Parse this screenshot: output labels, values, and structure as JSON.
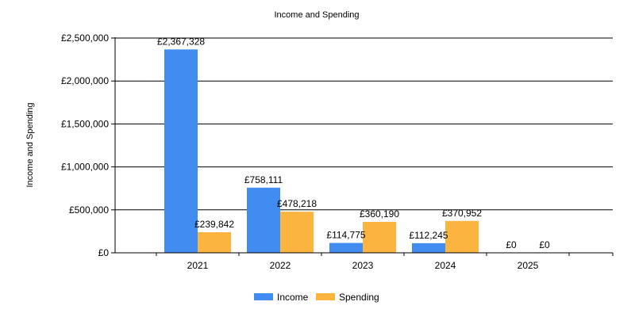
{
  "chart_data": {
    "type": "bar",
    "title": "Income and Spending",
    "ylabel": "Income and Spending",
    "xlabel": "",
    "categories": [
      "2021",
      "2022",
      "2023",
      "2024",
      "2025"
    ],
    "series": [
      {
        "name": "Income",
        "color": "#418CF0",
        "values": [
          2367328,
          758111,
          114775,
          112245,
          0
        ],
        "labels": [
          "£2,367,328",
          "£758,111",
          "£114,775",
          "£112,245",
          "£0"
        ]
      },
      {
        "name": "Spending",
        "color": "#FCB441",
        "values": [
          239842,
          478218,
          360190,
          370952,
          0
        ],
        "labels": [
          "£239,842",
          "£478,218",
          "£360,190",
          "£370,952",
          "£0"
        ]
      }
    ],
    "ylim": [
      0,
      2500000
    ],
    "yticks": [
      0,
      500000,
      1000000,
      1500000,
      2000000,
      2500000
    ],
    "ytick_labels": [
      "£0",
      "£500,000",
      "£1,000,000",
      "£1,500,000",
      "£2,000,000",
      "£2,500,000"
    ],
    "grid": true,
    "legend": "bottom-center"
  }
}
